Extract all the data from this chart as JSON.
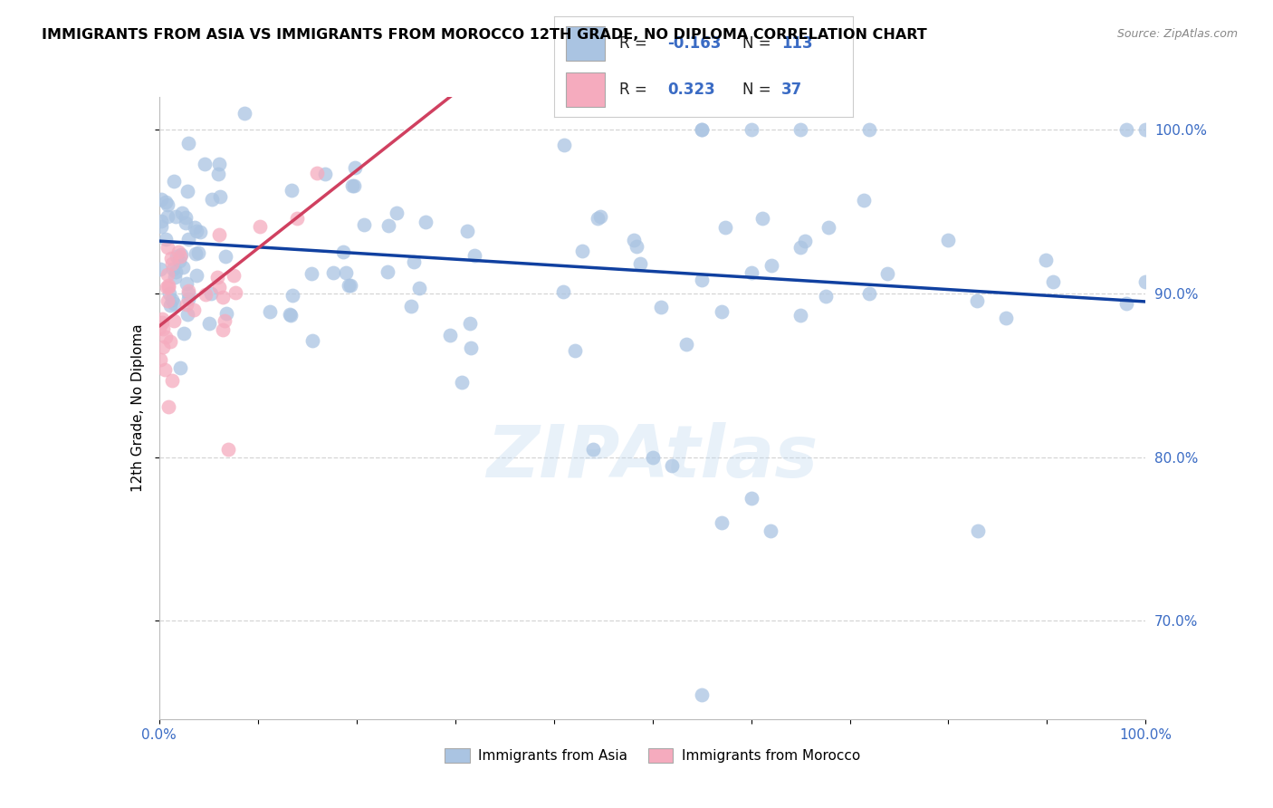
{
  "title": "IMMIGRANTS FROM ASIA VS IMMIGRANTS FROM MOROCCO 12TH GRADE, NO DIPLOMA CORRELATION CHART",
  "source": "Source: ZipAtlas.com",
  "ylabel": "12th Grade, No Diploma",
  "xlim": [
    0,
    100
  ],
  "ylim": [
    64,
    102
  ],
  "yticks": [
    70,
    80,
    90,
    100
  ],
  "ytick_labels": [
    "70.0%",
    "80.0%",
    "90.0%",
    "100.0%"
  ],
  "legend_label1": "Immigrants from Asia",
  "legend_label2": "Immigrants from Morocco",
  "R_asia": -0.163,
  "N_asia": 113,
  "R_morocco": 0.323,
  "N_morocco": 37,
  "color_asia": "#aac4e2",
  "color_morocco": "#f5abbe",
  "color_asia_line": "#1040a0",
  "color_morocco_line": "#d04060",
  "watermark": "ZIPAtlas",
  "asia_line_x0": 0,
  "asia_line_y0": 93.2,
  "asia_line_x1": 100,
  "asia_line_y1": 89.5,
  "morocco_line_x0": 0,
  "morocco_line_y0": 88.0,
  "morocco_line_x1": 20,
  "morocco_line_y1": 97.5
}
